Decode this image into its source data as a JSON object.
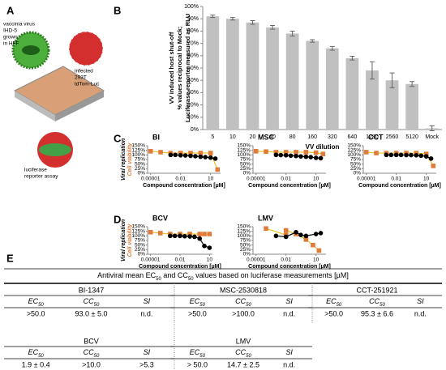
{
  "panels": [
    "A",
    "B",
    "C",
    "D",
    "E"
  ],
  "illustration": {
    "virus": [
      "vaccinia virus",
      "IHD-5",
      "grown",
      "in HFF"
    ],
    "cells": [
      "infected",
      "293T",
      "tdTom-Luc"
    ],
    "assay": [
      "luciferase",
      "reporter assay"
    ]
  },
  "chart_data": [
    {
      "type": "bar",
      "ylabel": [
        "VV induced host shut-off",
        "% values reciprocal to Mock;",
        "Luciferase-reporter measured as RLU"
      ],
      "xlabel": "VV dilution",
      "categories": [
        "5",
        "10",
        "20",
        "40",
        "80",
        "160",
        "320",
        "640",
        "1280",
        "2560",
        "5120",
        "Mock"
      ],
      "values": [
        92,
        90,
        87,
        83,
        78,
        72,
        66,
        58,
        48,
        40,
        37,
        1
      ],
      "errors": [
        1,
        1,
        1.5,
        1.5,
        2,
        1,
        1.5,
        1.5,
        7,
        6,
        2,
        2
      ],
      "color": "#c0c0c0",
      "ylim": [
        0,
        100
      ],
      "yticks": [
        {
          "value": 0,
          "label": "0%"
        },
        {
          "value": 10,
          "label": "10%"
        },
        {
          "value": 20,
          "label": "20%"
        },
        {
          "value": 30,
          "label": "30%"
        },
        {
          "value": 40,
          "label": "40%"
        },
        {
          "value": 50,
          "label": "50%"
        },
        {
          "value": 60,
          "label": "60%"
        },
        {
          "value": 70,
          "label": "70%"
        },
        {
          "value": 80,
          "label": "80%"
        },
        {
          "value": 90,
          "label": "90%"
        },
        {
          "value": 100,
          "label": "100%"
        }
      ]
    },
    {
      "type": "scatter",
      "title": "BI",
      "ylabel": [
        "Viral replication",
        "Cell viability"
      ],
      "ylabel_colors": [
        "#000000",
        "#e07b39"
      ],
      "xlabel": "Compound concentration [µM]",
      "log_x": true,
      "xlim": [
        5e-06,
        100
      ],
      "xticks": [
        1e-05,
        0.01,
        10
      ],
      "ylim": [
        0,
        150
      ],
      "yticks": [
        {
          "value": 0,
          "label": "0%"
        },
        {
          "value": 25,
          "label": "25%"
        },
        {
          "value": 50,
          "label": "50%"
        },
        {
          "value": 75,
          "label": "75%"
        },
        {
          "value": 100,
          "label": "100%"
        },
        {
          "value": 125,
          "label": "125%"
        },
        {
          "value": 150,
          "label": "150%"
        }
      ],
      "series": [
        {
          "color": "#e07b39",
          "line_color": "#f0c020",
          "marker": "square",
          "x": [
            1e-05,
            0.0001,
            0.001,
            0.01,
            0.1,
            1,
            10,
            50
          ],
          "values": [
            120,
            115,
            110,
            110,
            110,
            110,
            110,
            20
          ]
        },
        {
          "color": "#000000",
          "line_color": "#000000",
          "marker": "circle",
          "x": [
            0.001,
            0.003,
            0.01,
            0.03,
            0.1,
            0.3,
            1,
            3,
            10,
            30
          ],
          "values": [
            100,
            100,
            98,
            97,
            95,
            93,
            90,
            88,
            85,
            80
          ]
        }
      ]
    },
    {
      "type": "scatter",
      "title": "MSC",
      "xlabel": "Compound concentration [µM]",
      "log_x": true,
      "xlim": [
        5e-06,
        100
      ],
      "xticks": [
        1e-05,
        0.01,
        10
      ],
      "ylim": [
        0,
        150
      ],
      "yticks": [
        {
          "value": 0,
          "label": "0%"
        },
        {
          "value": 25,
          "label": "25%"
        },
        {
          "value": 50,
          "label": "50%"
        },
        {
          "value": 75,
          "label": "75%"
        },
        {
          "value": 100,
          "label": "100%"
        },
        {
          "value": 125,
          "label": "125%"
        },
        {
          "value": 150,
          "label": "150%"
        }
      ],
      "series": [
        {
          "color": "#e07b39",
          "line_color": "#f0c020",
          "marker": "square",
          "x": [
            1e-05,
            0.0001,
            0.001,
            0.01,
            0.1,
            1,
            10,
            50
          ],
          "values": [
            120,
            118,
            115,
            115,
            115,
            115,
            112,
            105
          ]
        },
        {
          "color": "#000000",
          "line_color": "#000000",
          "marker": "circle",
          "x": [
            0.001,
            0.003,
            0.01,
            0.03,
            0.1,
            0.3,
            1,
            3,
            10,
            30
          ],
          "values": [
            100,
            99,
            98,
            96,
            94,
            92,
            90,
            88,
            84,
            82
          ]
        }
      ]
    },
    {
      "type": "scatter",
      "title": "CCT",
      "xlabel": "Compound concentration [µM]",
      "log_x": true,
      "xlim": [
        5e-06,
        100
      ],
      "xticks": [
        1e-05,
        0.01,
        10
      ],
      "ylim": [
        0,
        150
      ],
      "yticks": [
        {
          "value": 0,
          "label": "0%"
        },
        {
          "value": 25,
          "label": "25%"
        },
        {
          "value": 50,
          "label": "50%"
        },
        {
          "value": 75,
          "label": "75%"
        },
        {
          "value": 100,
          "label": "100%"
        },
        {
          "value": 125,
          "label": "125%"
        },
        {
          "value": 150,
          "label": "150%"
        }
      ],
      "series": [
        {
          "color": "#e07b39",
          "line_color": "#f0c020",
          "marker": "square",
          "x": [
            1e-05,
            0.0001,
            0.001,
            0.01,
            0.1,
            1,
            10,
            50
          ],
          "values": [
            115,
            110,
            110,
            110,
            110,
            110,
            105,
            40
          ]
        },
        {
          "color": "#000000",
          "line_color": "#000000",
          "marker": "circle",
          "x": [
            0.001,
            0.003,
            0.01,
            0.03,
            0.1,
            0.3,
            1,
            3,
            10,
            30
          ],
          "values": [
            100,
            100,
            100,
            100,
            99,
            99,
            98,
            96,
            92,
            80
          ]
        }
      ]
    },
    {
      "type": "scatter",
      "title": "BCV",
      "ylabel": [
        "Viral replication",
        "Cell viability"
      ],
      "ylabel_colors": [
        "#000000",
        "#e07b39"
      ],
      "xlabel": "Compound concentration [µM]",
      "log_x": true,
      "xlim": [
        5e-06,
        20
      ],
      "xticks": [
        1e-05,
        0.01,
        10
      ],
      "ylim": [
        0,
        150
      ],
      "yticks": [
        {
          "value": 0,
          "label": "0%"
        },
        {
          "value": 25,
          "label": "25%"
        },
        {
          "value": 50,
          "label": "50%"
        },
        {
          "value": 75,
          "label": "75%"
        },
        {
          "value": 100,
          "label": "100%"
        },
        {
          "value": 125,
          "label": "125%"
        },
        {
          "value": 150,
          "label": "150%"
        }
      ],
      "series": [
        {
          "color": "#e07b39",
          "line_color": "#f0c020",
          "marker": "square",
          "x": [
            1e-05,
            0.0001,
            0.001,
            0.01,
            0.1,
            1,
            3,
            10
          ],
          "values": [
            120,
            115,
            110,
            110,
            110,
            110,
            110,
            110
          ]
        },
        {
          "color": "#000000",
          "line_color": "#000000",
          "marker": "circle",
          "x": [
            0.001,
            0.003,
            0.01,
            0.03,
            0.1,
            0.3,
            1,
            3,
            10
          ],
          "values": [
            100,
            100,
            100,
            98,
            97,
            95,
            85,
            45,
            35
          ]
        }
      ]
    },
    {
      "type": "scatter",
      "title": "LMV",
      "xlabel": "Compound concentration [µM]",
      "log_x": true,
      "xlim": [
        5e-06,
        100
      ],
      "xticks": [
        1e-05,
        0.01,
        10
      ],
      "ylim": [
        0,
        150
      ],
      "yticks": [
        {
          "value": 0,
          "label": "0%"
        },
        {
          "value": 25,
          "label": "25%"
        },
        {
          "value": 50,
          "label": "50%"
        },
        {
          "value": 75,
          "label": "75%"
        },
        {
          "value": 100,
          "label": "100%"
        },
        {
          "value": 125,
          "label": "125%"
        },
        {
          "value": 150,
          "label": "150%"
        }
      ],
      "series": [
        {
          "color": "#e07b39",
          "line_color": "#f0c020",
          "marker": "square",
          "x": [
            0.0001,
            0.01,
            0.01,
            0.1,
            1,
            5,
            20
          ],
          "values": [
            140,
            105,
            130,
            110,
            80,
            50,
            20
          ]
        },
        {
          "color": "#000000",
          "line_color": "#000000",
          "marker": "circle",
          "x": [
            0.001,
            0.01,
            0.1,
            0.3,
            1,
            10,
            30
          ],
          "values": [
            100,
            95,
            120,
            105,
            100,
            110,
            115
          ]
        }
      ]
    }
  ],
  "table": {
    "title": [
      "Antiviral mean EC",
      "50",
      " and CC",
      "50",
      " values based on luciferase measurements [µM]"
    ],
    "headers": [
      [
        "EC",
        "50"
      ],
      [
        "CC",
        "50"
      ],
      [
        "SI"
      ]
    ],
    "blocks": [
      {
        "name": "BI-1347",
        "values": [
          ">50.0",
          "93.0 ± 5.0",
          "n.d."
        ]
      },
      {
        "name": "MSC-2530818",
        "values": [
          ">50.0",
          ">100.0",
          "n.d."
        ]
      },
      {
        "name": "CCT-251921",
        "values": [
          ">50.0",
          "95.3 ± 6.6",
          "n.d."
        ]
      },
      {
        "name": "BCV",
        "values": [
          "1.9 ± 0.4",
          ">10.0",
          ">5.3"
        ]
      },
      {
        "name": "LMV",
        "values": [
          "> 50.0",
          "14.7 ± 2.5",
          "n.d."
        ]
      }
    ]
  }
}
